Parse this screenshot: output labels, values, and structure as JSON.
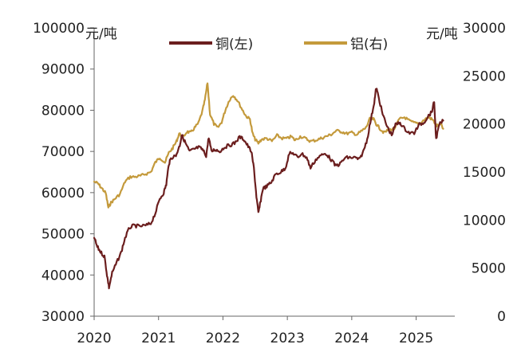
{
  "chart_data": {
    "type": "line",
    "title": "",
    "left_axis": {
      "unit": "元/吨",
      "range": [
        30000,
        100000
      ],
      "ticks": [
        "30000",
        "40000",
        "50000",
        "60000",
        "70000",
        "80000",
        "90000",
        "100000"
      ]
    },
    "right_axis": {
      "unit": "元/吨",
      "range": [
        0,
        30000
      ],
      "ticks": [
        "0",
        "5000",
        "10000",
        "15000",
        "20000",
        "25000",
        "30000"
      ]
    },
    "x_axis": {
      "range": [
        2020.0,
        2025.6
      ],
      "ticks": [
        "2020",
        "2021",
        "2022",
        "2023",
        "2024",
        "2025"
      ]
    },
    "legend": {
      "position": "top"
    },
    "grid": false,
    "series": [
      {
        "name": "铜(左)",
        "axis": "left",
        "color": "#6b1e1e",
        "points": [
          [
            2020.0,
            49000
          ],
          [
            2020.05,
            46800
          ],
          [
            2020.1,
            45600
          ],
          [
            2020.16,
            44500
          ],
          [
            2020.2,
            40000
          ],
          [
            2020.23,
            37000
          ],
          [
            2020.28,
            40500
          ],
          [
            2020.35,
            43000
          ],
          [
            2020.42,
            45500
          ],
          [
            2020.48,
            49000
          ],
          [
            2020.55,
            51500
          ],
          [
            2020.62,
            52000
          ],
          [
            2020.7,
            51800
          ],
          [
            2020.8,
            52000
          ],
          [
            2020.88,
            52500
          ],
          [
            2020.95,
            55000
          ],
          [
            2021.02,
            58500
          ],
          [
            2021.08,
            60000
          ],
          [
            2021.12,
            62000
          ],
          [
            2021.16,
            67000
          ],
          [
            2021.2,
            68500
          ],
          [
            2021.27,
            69000
          ],
          [
            2021.33,
            71500
          ],
          [
            2021.36,
            74000
          ],
          [
            2021.42,
            72000
          ],
          [
            2021.48,
            70000
          ],
          [
            2021.55,
            70500
          ],
          [
            2021.62,
            71000
          ],
          [
            2021.68,
            70500
          ],
          [
            2021.74,
            69000
          ],
          [
            2021.78,
            73500
          ],
          [
            2021.82,
            70000
          ],
          [
            2021.88,
            70500
          ],
          [
            2021.95,
            70000
          ],
          [
            2022.02,
            71000
          ],
          [
            2022.1,
            71500
          ],
          [
            2022.18,
            72000
          ],
          [
            2022.26,
            73500
          ],
          [
            2022.32,
            73000
          ],
          [
            2022.38,
            71500
          ],
          [
            2022.44,
            70000
          ],
          [
            2022.48,
            66000
          ],
          [
            2022.52,
            59000
          ],
          [
            2022.55,
            55000
          ],
          [
            2022.58,
            57500
          ],
          [
            2022.62,
            61000
          ],
          [
            2022.68,
            61500
          ],
          [
            2022.75,
            62500
          ],
          [
            2022.82,
            64500
          ],
          [
            2022.9,
            65000
          ],
          [
            2022.97,
            66000
          ],
          [
            2023.03,
            69500
          ],
          [
            2023.1,
            69500
          ],
          [
            2023.16,
            68500
          ],
          [
            2023.22,
            69500
          ],
          [
            2023.3,
            68500
          ],
          [
            2023.36,
            66000
          ],
          [
            2023.44,
            68000
          ],
          [
            2023.52,
            69000
          ],
          [
            2023.6,
            69500
          ],
          [
            2023.68,
            68000
          ],
          [
            2023.75,
            66500
          ],
          [
            2023.82,
            67000
          ],
          [
            2023.9,
            68500
          ],
          [
            2023.97,
            68500
          ],
          [
            2024.05,
            68500
          ],
          [
            2024.12,
            68000
          ],
          [
            2024.18,
            70000
          ],
          [
            2024.24,
            73000
          ],
          [
            2024.3,
            78000
          ],
          [
            2024.35,
            82000
          ],
          [
            2024.38,
            85500
          ],
          [
            2024.42,
            83000
          ],
          [
            2024.48,
            79000
          ],
          [
            2024.55,
            76000
          ],
          [
            2024.62,
            74000
          ],
          [
            2024.68,
            76500
          ],
          [
            2024.75,
            77000
          ],
          [
            2024.82,
            75500
          ],
          [
            2024.9,
            74500
          ],
          [
            2024.97,
            74500
          ],
          [
            2025.05,
            76500
          ],
          [
            2025.12,
            77000
          ],
          [
            2025.18,
            78500
          ],
          [
            2025.24,
            79500
          ],
          [
            2025.28,
            82000
          ],
          [
            2025.31,
            73000
          ],
          [
            2025.36,
            76500
          ],
          [
            2025.42,
            77500
          ]
        ]
      },
      {
        "name": "铝(右)",
        "axis": "right",
        "color": "#c49a3c",
        "points": [
          [
            2020.0,
            14000
          ],
          [
            2020.06,
            13800
          ],
          [
            2020.12,
            13300
          ],
          [
            2020.18,
            12800
          ],
          [
            2020.22,
            11300
          ],
          [
            2020.26,
            11800
          ],
          [
            2020.32,
            12200
          ],
          [
            2020.4,
            12700
          ],
          [
            2020.48,
            14000
          ],
          [
            2020.56,
            14500
          ],
          [
            2020.64,
            14500
          ],
          [
            2020.72,
            14600
          ],
          [
            2020.8,
            14800
          ],
          [
            2020.88,
            15000
          ],
          [
            2020.95,
            16000
          ],
          [
            2021.02,
            16500
          ],
          [
            2021.1,
            16000
          ],
          [
            2021.16,
            17000
          ],
          [
            2021.22,
            17500
          ],
          [
            2021.28,
            18200
          ],
          [
            2021.32,
            19000
          ],
          [
            2021.38,
            18600
          ],
          [
            2021.44,
            19200
          ],
          [
            2021.5,
            19100
          ],
          [
            2021.56,
            19600
          ],
          [
            2021.62,
            20100
          ],
          [
            2021.68,
            21300
          ],
          [
            2021.72,
            22500
          ],
          [
            2021.76,
            24300
          ],
          [
            2021.8,
            21000
          ],
          [
            2021.86,
            20000
          ],
          [
            2021.92,
            19600
          ],
          [
            2021.98,
            20200
          ],
          [
            2022.04,
            21500
          ],
          [
            2022.1,
            22500
          ],
          [
            2022.16,
            23000
          ],
          [
            2022.22,
            22500
          ],
          [
            2022.3,
            21500
          ],
          [
            2022.36,
            20800
          ],
          [
            2022.42,
            20500
          ],
          [
            2022.46,
            19000
          ],
          [
            2022.5,
            18400
          ],
          [
            2022.55,
            18000
          ],
          [
            2022.6,
            18400
          ],
          [
            2022.68,
            18500
          ],
          [
            2022.76,
            18200
          ],
          [
            2022.84,
            18800
          ],
          [
            2022.92,
            18500
          ],
          [
            2023.0,
            18500
          ],
          [
            2023.06,
            18700
          ],
          [
            2023.12,
            18300
          ],
          [
            2023.2,
            18700
          ],
          [
            2023.28,
            18500
          ],
          [
            2023.36,
            18200
          ],
          [
            2023.44,
            18300
          ],
          [
            2023.52,
            18500
          ],
          [
            2023.6,
            18700
          ],
          [
            2023.68,
            18900
          ],
          [
            2023.76,
            19300
          ],
          [
            2023.84,
            19200
          ],
          [
            2023.92,
            19000
          ],
          [
            2024.0,
            19100
          ],
          [
            2024.08,
            18900
          ],
          [
            2024.16,
            19300
          ],
          [
            2024.22,
            19600
          ],
          [
            2024.28,
            20500
          ],
          [
            2024.34,
            20500
          ],
          [
            2024.38,
            20000
          ],
          [
            2024.44,
            19500
          ],
          [
            2024.5,
            19100
          ],
          [
            2024.58,
            19400
          ],
          [
            2024.66,
            19500
          ],
          [
            2024.74,
            20500
          ],
          [
            2024.82,
            20700
          ],
          [
            2024.9,
            20300
          ],
          [
            2024.98,
            20100
          ],
          [
            2025.06,
            20100
          ],
          [
            2025.14,
            20500
          ],
          [
            2025.2,
            20700
          ],
          [
            2025.26,
            20400
          ],
          [
            2025.32,
            19800
          ],
          [
            2025.38,
            20000
          ],
          [
            2025.42,
            19500
          ]
        ]
      }
    ]
  }
}
